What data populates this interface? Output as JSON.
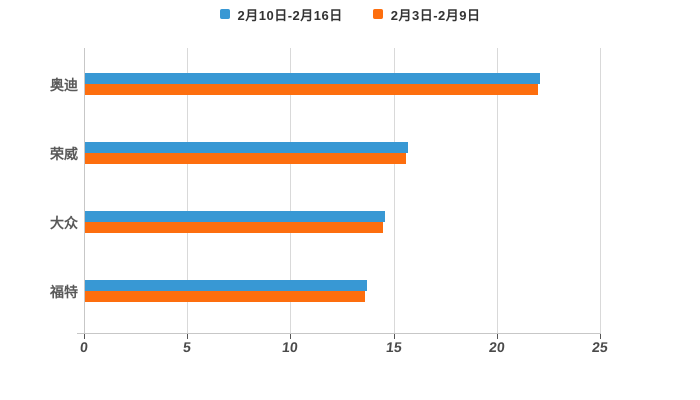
{
  "legend": {
    "items": [
      {
        "label": "2月10日-2月16日",
        "color": "#3898d4"
      },
      {
        "label": "2月3日-2月9日",
        "color": "#fd6e0e"
      }
    ]
  },
  "chart_data": {
    "type": "bar",
    "orientation": "horizontal",
    "title": "",
    "xlabel": "",
    "ylabel": "",
    "categories": [
      "奥迪",
      "荣威",
      "大众",
      "福特"
    ],
    "series": [
      {
        "name": "2月10日-2月16日",
        "color": "#3898d4",
        "values": [
          22.1,
          15.7,
          14.6,
          13.7
        ]
      },
      {
        "name": "2月3日-2月9日",
        "color": "#fd6e0e",
        "values": [
          22.0,
          15.6,
          14.5,
          13.6
        ]
      }
    ],
    "xlim": [
      0,
      25
    ],
    "x_ticks": [
      0,
      5,
      10,
      15,
      20,
      25
    ],
    "grid": true,
    "legend_position": "top",
    "background": "#ffffff",
    "text_color": "#595959",
    "gridline_color": "#d9d9d9",
    "axis_color": "#c7c7c7"
  }
}
